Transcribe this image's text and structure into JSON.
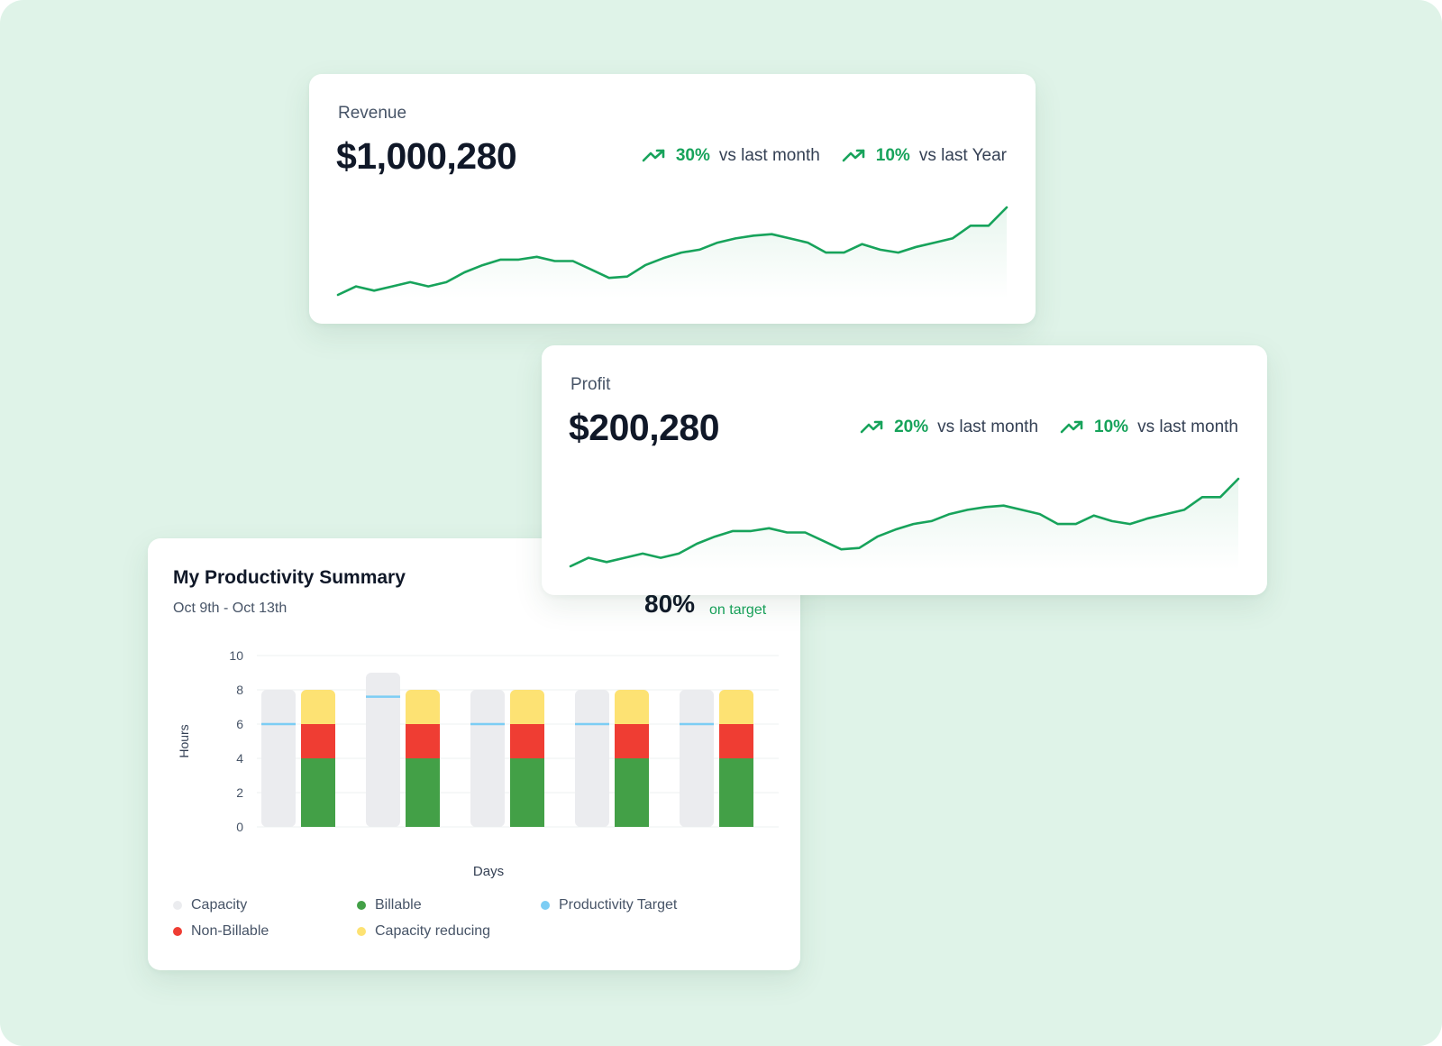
{
  "revenue": {
    "label": "Revenue",
    "value": "$1,000,280",
    "trends": [
      {
        "percent": "30%",
        "text": "vs last month"
      },
      {
        "percent": "10%",
        "text": "vs last Year"
      }
    ]
  },
  "profit": {
    "label": "Profit",
    "value": "$200,280",
    "trends": [
      {
        "percent": "20%",
        "text": "vs last month"
      },
      {
        "percent": "10%",
        "text": "vs last month"
      }
    ]
  },
  "productivity": {
    "title": "My Productivity Summary",
    "date_range": "Oct 9th - Oct 13th",
    "target_percent": "80%",
    "target_text": "on target"
  },
  "colors": {
    "accent_green": "#17a35b",
    "capacity": "#ebecef",
    "billable": "#43a047",
    "non_billable": "#ef3d33",
    "capacity_reducing": "#fde273",
    "productivity_target": "#7ccdf4",
    "background": "#dff3e8"
  },
  "chart_data": [
    {
      "type": "line",
      "title": "Revenue",
      "axes_shown": false,
      "y": [
        10,
        16,
        13,
        16,
        19,
        16,
        19,
        26,
        31,
        35,
        35,
        37,
        34,
        34,
        28,
        22,
        23,
        31,
        36,
        40,
        42,
        47,
        50,
        52,
        53,
        50,
        47,
        40,
        40,
        46,
        42,
        40,
        44,
        47,
        50,
        59,
        59,
        72
      ]
    },
    {
      "type": "line",
      "title": "Profit",
      "axes_shown": false,
      "y": [
        10,
        16,
        13,
        16,
        19,
        16,
        19,
        26,
        31,
        35,
        35,
        37,
        34,
        34,
        28,
        22,
        23,
        31,
        36,
        40,
        42,
        47,
        50,
        52,
        53,
        50,
        47,
        40,
        40,
        46,
        42,
        40,
        44,
        47,
        50,
        59,
        59,
        72
      ]
    },
    {
      "type": "bar",
      "title": "My Productivity Summary",
      "xlabel": "Days",
      "ylabel": "Hours",
      "ylim": [
        0,
        10
      ],
      "yticks": [
        0,
        2,
        4,
        6,
        8,
        10
      ],
      "grid": true,
      "legend_position": "bottom",
      "legend": [
        {
          "name": "Capacity",
          "color": "#ebecef"
        },
        {
          "name": "Billable",
          "color": "#43a047"
        },
        {
          "name": "Productivity Target",
          "color": "#7ccdf4"
        },
        {
          "name": "Non-Billable",
          "color": "#ef3d33"
        },
        {
          "name": "Capacity reducing",
          "color": "#fde273"
        }
      ],
      "groups": [
        {
          "capacity": 8,
          "productivity_target": 6,
          "billable": 4,
          "non_billable": 2,
          "capacity_reducing": 2
        },
        {
          "capacity": 9,
          "productivity_target": 7.6,
          "billable": 4,
          "non_billable": 2,
          "capacity_reducing": 2
        },
        {
          "capacity": 8,
          "productivity_target": 6,
          "billable": 4,
          "non_billable": 2,
          "capacity_reducing": 2
        },
        {
          "capacity": 8,
          "productivity_target": 6,
          "billable": 4,
          "non_billable": 2,
          "capacity_reducing": 2
        },
        {
          "capacity": 8,
          "productivity_target": 6,
          "billable": 4,
          "non_billable": 2,
          "capacity_reducing": 2
        }
      ]
    }
  ]
}
